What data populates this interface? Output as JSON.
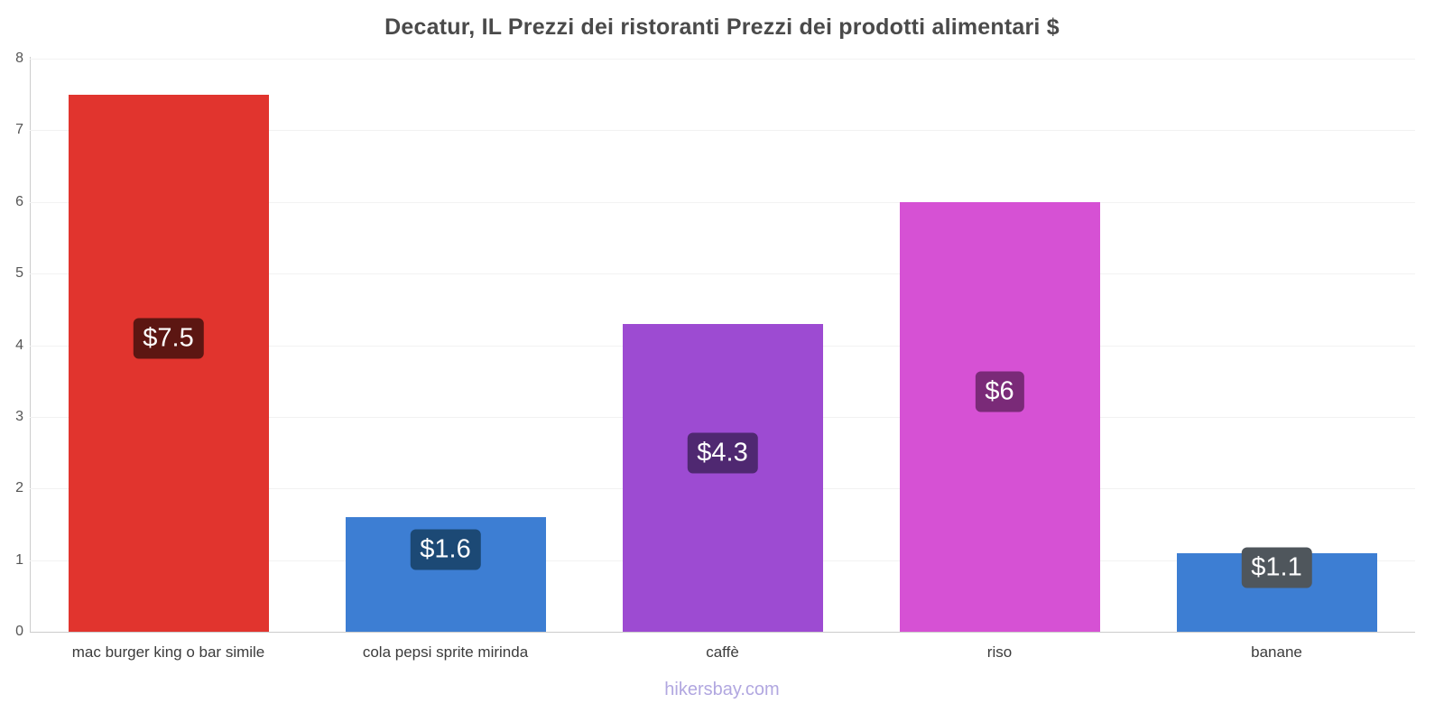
{
  "footer": "hikersbay.com",
  "chart_data": {
    "type": "bar",
    "title": "Decatur, IL Prezzi dei ristoranti Prezzi dei prodotti alimentari $",
    "xlabel": "",
    "ylabel": "",
    "categories": [
      "mac burger king o bar simile",
      "cola pepsi sprite mirinda",
      "caffè",
      "riso",
      "banane"
    ],
    "values": [
      7.5,
      1.6,
      4.3,
      6,
      1.1
    ],
    "value_labels": [
      "$7.5",
      "$1.6",
      "$4.3",
      "$6",
      "$1.1"
    ],
    "bar_colors": [
      "#e1342e",
      "#3d7ed3",
      "#9d4bd2",
      "#d651d4",
      "#3d7ed3"
    ],
    "label_colors": [
      "#5c1612",
      "#1c4975",
      "#4f2871",
      "#7a2a78",
      "#4f565c"
    ],
    "ylim": [
      0,
      8
    ],
    "yticks": [
      0,
      1,
      2,
      3,
      4,
      5,
      6,
      7,
      8
    ],
    "grid": true,
    "legend": "none"
  }
}
